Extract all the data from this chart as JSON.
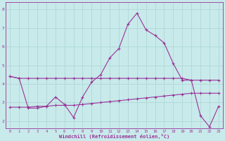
{
  "xlabel": "Windchill (Refroidissement éolien,°C)",
  "ylabel": "",
  "bg_color": "#c8eaea",
  "grid_color": "#aad4d4",
  "line_color": "#993399",
  "xlim": [
    -0.5,
    23.5
  ],
  "ylim": [
    1.6,
    8.4
  ],
  "xticks": [
    0,
    1,
    2,
    3,
    4,
    5,
    6,
    7,
    8,
    9,
    10,
    11,
    12,
    13,
    14,
    15,
    16,
    17,
    18,
    19,
    20,
    21,
    22,
    23
  ],
  "yticks": [
    2,
    3,
    4,
    5,
    6,
    7,
    8
  ],
  "line1_x": [
    0,
    1,
    2,
    3,
    4,
    5,
    6,
    7,
    8,
    9,
    10,
    11,
    12,
    13,
    14,
    15,
    16,
    17,
    18,
    19,
    20,
    21,
    22,
    23
  ],
  "line1_y": [
    4.4,
    4.3,
    4.3,
    4.3,
    4.3,
    4.3,
    4.3,
    4.3,
    4.3,
    4.3,
    4.3,
    4.3,
    4.3,
    4.3,
    4.3,
    4.3,
    4.3,
    4.3,
    4.3,
    4.3,
    4.2,
    4.2,
    4.2,
    4.2
  ],
  "line2_x": [
    0,
    1,
    2,
    3,
    4,
    5,
    6,
    7,
    8,
    9,
    10,
    11,
    12,
    13,
    14,
    15,
    16,
    17,
    18,
    19,
    20,
    21,
    22,
    23
  ],
  "line2_y": [
    4.4,
    4.3,
    2.7,
    2.7,
    2.8,
    3.3,
    2.9,
    2.2,
    3.3,
    4.1,
    4.5,
    5.4,
    5.9,
    7.2,
    7.8,
    6.9,
    6.6,
    6.2,
    5.1,
    4.2,
    4.2,
    2.3,
    1.7,
    2.8
  ],
  "line3_x": [
    0,
    1,
    2,
    3,
    4,
    5,
    6,
    7,
    8,
    9,
    10,
    11,
    12,
    13,
    14,
    15,
    16,
    17,
    18,
    19,
    20,
    21,
    22,
    23
  ],
  "line3_y": [
    2.75,
    2.75,
    2.75,
    2.8,
    2.8,
    2.85,
    2.85,
    2.85,
    2.9,
    2.95,
    3.0,
    3.05,
    3.1,
    3.15,
    3.2,
    3.25,
    3.3,
    3.35,
    3.4,
    3.45,
    3.5,
    3.5,
    3.5,
    3.5
  ]
}
